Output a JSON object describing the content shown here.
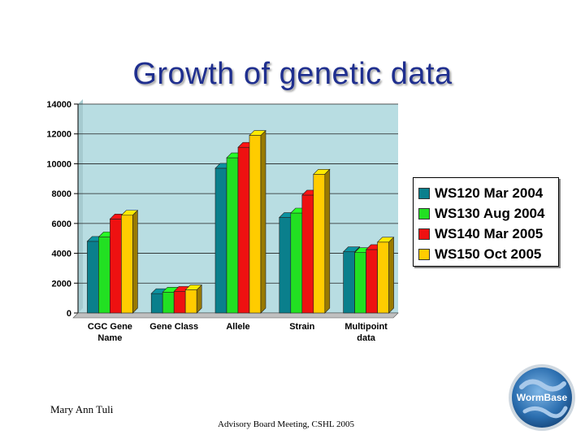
{
  "slide": {
    "title": "Growth of genetic data",
    "author": "Mary Ann Tuli",
    "event": "Advisory Board Meeting, CSHL 2005",
    "logo_text": "WormBase"
  },
  "chart_data": {
    "type": "bar",
    "title": "",
    "xlabel": "",
    "ylabel": "",
    "categories": [
      "CGC Gene Name",
      "Gene Class",
      "Allele",
      "Strain",
      "Multipoint data"
    ],
    "category_lines": [
      [
        "CGC Gene",
        "Name"
      ],
      [
        "Gene Class"
      ],
      [
        "Allele"
      ],
      [
        "Strain"
      ],
      [
        "Multipoint",
        "data"
      ]
    ],
    "yticks": [
      0,
      2000,
      4000,
      6000,
      8000,
      10000,
      12000,
      14000
    ],
    "ylim": [
      0,
      14000
    ],
    "grid": true,
    "legend_position": "right",
    "series": [
      {
        "name": "WS120 Mar 2004",
        "color": "#0a7f8c",
        "values": [
          4800,
          1300,
          9700,
          6400,
          4100
        ]
      },
      {
        "name": "WS130 Aug 2004",
        "color": "#22e022",
        "values": [
          5100,
          1400,
          10400,
          6700,
          4050
        ]
      },
      {
        "name": "WS140 Mar 2005",
        "color": "#ee1111",
        "values": [
          6300,
          1450,
          11100,
          7900,
          4250
        ]
      },
      {
        "name": "WS150 Oct 2005",
        "color": "#ffcc00",
        "values": [
          6550,
          1550,
          11900,
          9300,
          4750
        ]
      }
    ]
  }
}
